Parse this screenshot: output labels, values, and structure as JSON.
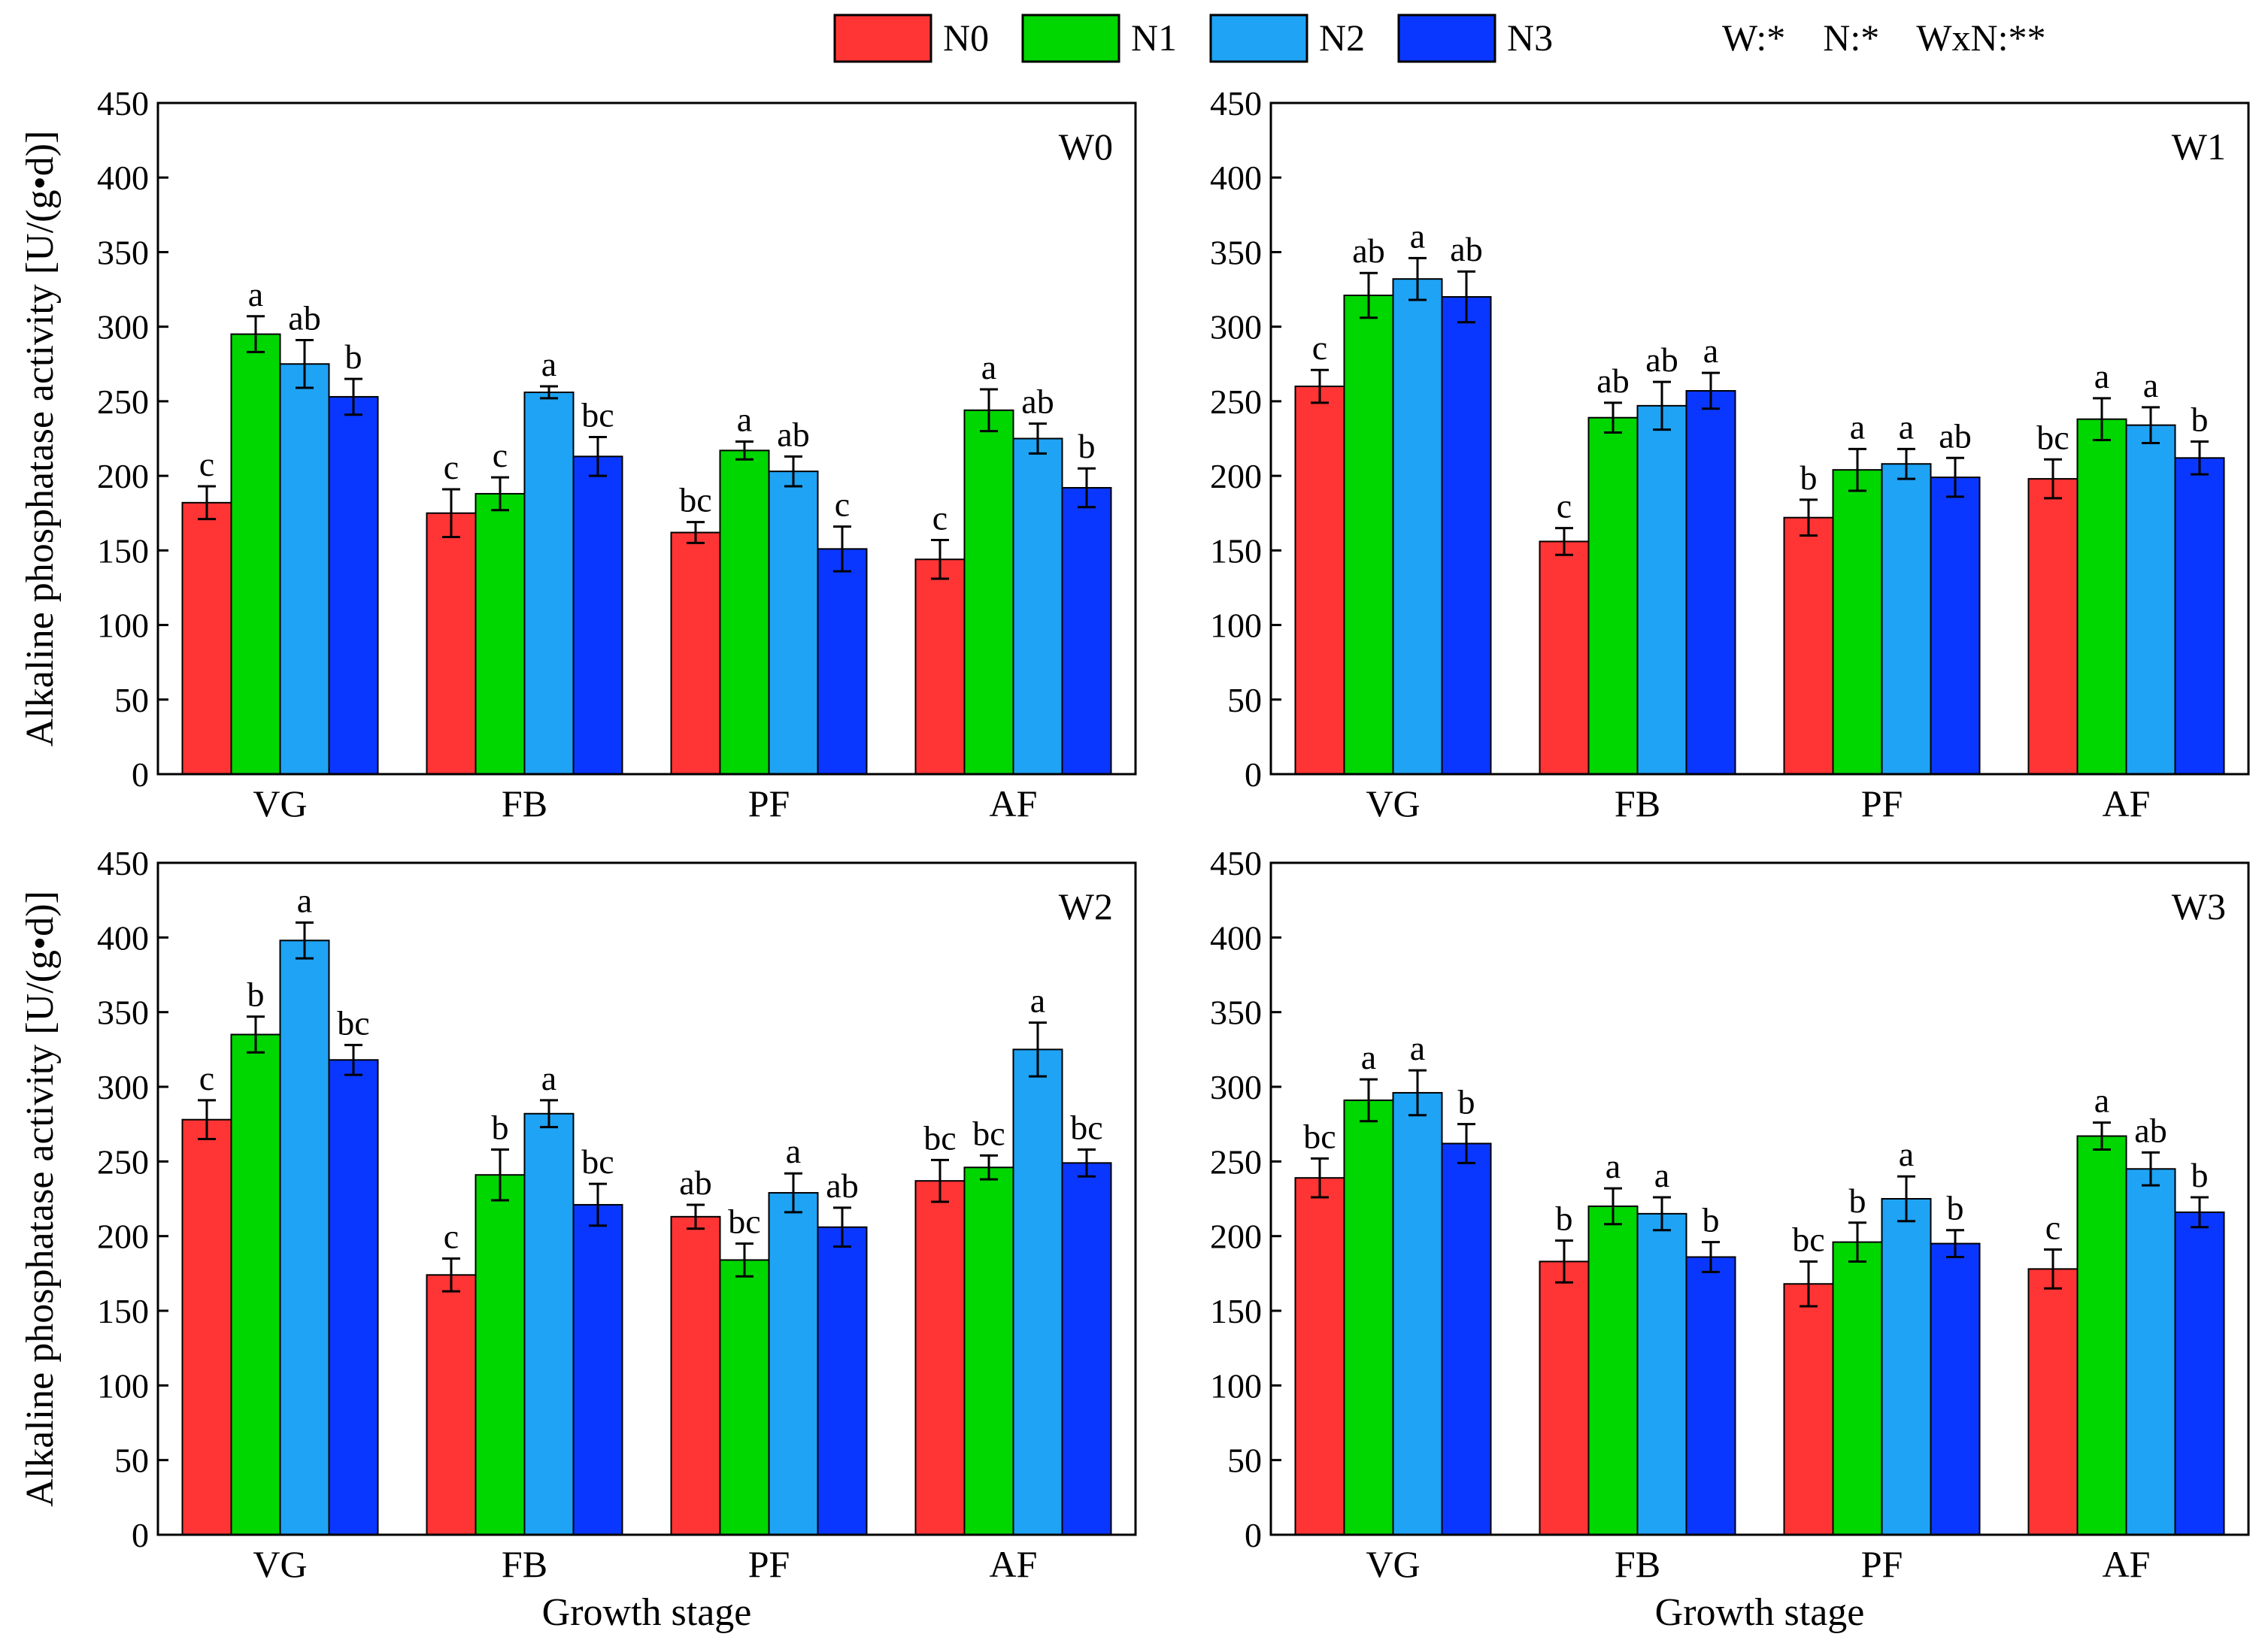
{
  "chart_data": {
    "type": "bar",
    "categories": [
      "VG",
      "FB",
      "PF",
      "AF"
    ],
    "legend": [
      {
        "name": "N0",
        "color": "#ff3535"
      },
      {
        "name": "N1",
        "color": "#00d600"
      },
      {
        "name": "N2",
        "color": "#1fa3f5"
      },
      {
        "name": "N3",
        "color": "#0a37ff"
      }
    ],
    "significance": "W:*    N:*    WxN:**",
    "ylabel": "Alkaline phosphatase activity [U/(g•d)]",
    "xlabel": "Growth stage",
    "ylim": [
      0,
      450
    ],
    "yticks": [
      0,
      50,
      100,
      150,
      200,
      250,
      300,
      350,
      400,
      450
    ],
    "panels": [
      {
        "title": "W0",
        "series": [
          {
            "name": "N0",
            "values": [
              182,
              175,
              162,
              144
            ],
            "errors": [
              11,
              16,
              7,
              13
            ],
            "letters": [
              "c",
              "c",
              "bc",
              "c"
            ]
          },
          {
            "name": "N1",
            "values": [
              295,
              188,
              217,
              244
            ],
            "errors": [
              12,
              11,
              6,
              14
            ],
            "letters": [
              "a",
              "c",
              "a",
              "a"
            ]
          },
          {
            "name": "N2",
            "values": [
              275,
              256,
              203,
              225
            ],
            "errors": [
              16,
              4,
              10,
              10
            ],
            "letters": [
              "ab",
              "a",
              "ab",
              "ab"
            ]
          },
          {
            "name": "N3",
            "values": [
              253,
              213,
              151,
              192
            ],
            "errors": [
              12,
              13,
              15,
              13
            ],
            "letters": [
              "b",
              "bc",
              "c",
              "b"
            ]
          }
        ]
      },
      {
        "title": "W1",
        "series": [
          {
            "name": "N0",
            "values": [
              260,
              156,
              172,
              198
            ],
            "errors": [
              11,
              9,
              12,
              13
            ],
            "letters": [
              "c",
              "c",
              "b",
              "bc"
            ]
          },
          {
            "name": "N1",
            "values": [
              321,
              239,
              204,
              238
            ],
            "errors": [
              15,
              10,
              14,
              14
            ],
            "letters": [
              "ab",
              "ab",
              "a",
              "a"
            ]
          },
          {
            "name": "N2",
            "values": [
              332,
              247,
              208,
              234
            ],
            "errors": [
              14,
              16,
              10,
              12
            ],
            "letters": [
              "a",
              "ab",
              "a",
              "a"
            ]
          },
          {
            "name": "N3",
            "values": [
              320,
              257,
              199,
              212
            ],
            "errors": [
              17,
              12,
              13,
              11
            ],
            "letters": [
              "ab",
              "a",
              "ab",
              "b"
            ]
          }
        ]
      },
      {
        "title": "W2",
        "series": [
          {
            "name": "N0",
            "values": [
              278,
              174,
              213,
              237
            ],
            "errors": [
              13,
              11,
              8,
              14
            ],
            "letters": [
              "c",
              "c",
              "ab",
              "bc"
            ]
          },
          {
            "name": "N1",
            "values": [
              335,
              241,
              184,
              246
            ],
            "errors": [
              12,
              17,
              11,
              8
            ],
            "letters": [
              "b",
              "b",
              "bc",
              "bc"
            ]
          },
          {
            "name": "N2",
            "values": [
              398,
              282,
              229,
              325
            ],
            "errors": [
              12,
              9,
              13,
              18
            ],
            "letters": [
              "a",
              "a",
              "a",
              "a"
            ]
          },
          {
            "name": "N3",
            "values": [
              318,
              221,
              206,
              249
            ],
            "errors": [
              10,
              14,
              13,
              9
            ],
            "letters": [
              "bc",
              "bc",
              "ab",
              "bc"
            ]
          }
        ]
      },
      {
        "title": "W3",
        "series": [
          {
            "name": "N0",
            "values": [
              239,
              183,
              168,
              178
            ],
            "errors": [
              13,
              14,
              15,
              13
            ],
            "letters": [
              "bc",
              "b",
              "bc",
              "c"
            ]
          },
          {
            "name": "N1",
            "values": [
              291,
              220,
              196,
              267
            ],
            "errors": [
              14,
              12,
              13,
              9
            ],
            "letters": [
              "a",
              "a",
              "b",
              "a"
            ]
          },
          {
            "name": "N2",
            "values": [
              296,
              215,
              225,
              245
            ],
            "errors": [
              15,
              11,
              15,
              11
            ],
            "letters": [
              "a",
              "a",
              "a",
              "ab"
            ]
          },
          {
            "name": "N3",
            "values": [
              262,
              186,
              195,
              216
            ],
            "errors": [
              13,
              10,
              9,
              10
            ],
            "letters": [
              "b",
              "b",
              "b",
              "b"
            ]
          }
        ]
      }
    ]
  }
}
